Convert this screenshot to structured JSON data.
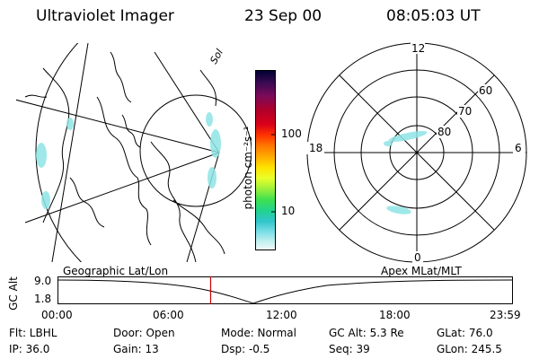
{
  "header": {
    "instrument": "Ultraviolet Imager",
    "date": "23 Sep 00",
    "time": "08:05:03 UT"
  },
  "colorbar": {
    "label": "photon cm⁻²s⁻¹",
    "ticks": [
      "100",
      "10"
    ],
    "colors": [
      "#000033",
      "#3a0a52",
      "#7a0b5a",
      "#b0002a",
      "#d9001a",
      "#ff3300",
      "#ff7700",
      "#ffaa00",
      "#ffe200",
      "#e9ff2a",
      "#9cf03a",
      "#3fe050",
      "#22d38c",
      "#30c6cc",
      "#7cdfe6",
      "#bfefef",
      "#f2f8f8"
    ]
  },
  "geo_panel": {
    "annotation": "Sol"
  },
  "polar_plot": {
    "lat_labels": [
      "60",
      "70",
      "80"
    ],
    "mlt_labels": {
      "top": "12",
      "left": "18",
      "right": "6",
      "bottom": "0"
    }
  },
  "timeline": {
    "left_title": "Geographic Lat/Lon",
    "right_title": "Apex MLat/MLT",
    "ylabel": "GC Alt",
    "yticks": [
      "9.0",
      "1.8"
    ],
    "xticks": [
      "00:00",
      "06:00",
      "12:00",
      "18:00",
      "23:59"
    ],
    "current_time_hours": 8.08,
    "marker_color": "#cc0000"
  },
  "info": {
    "filter": "Flt: LBHL",
    "ip": "IP: 36.0",
    "door": "Door: Open",
    "gain": "Gain: 13",
    "mode": "Mode: Normal",
    "dsp": "Dsp:  -0.5",
    "gc_alt": "GC Alt: 5.3 Re",
    "seq": "Seq: 39",
    "glat": "GLat:  76.0",
    "glon": "GLon: 245.5"
  }
}
